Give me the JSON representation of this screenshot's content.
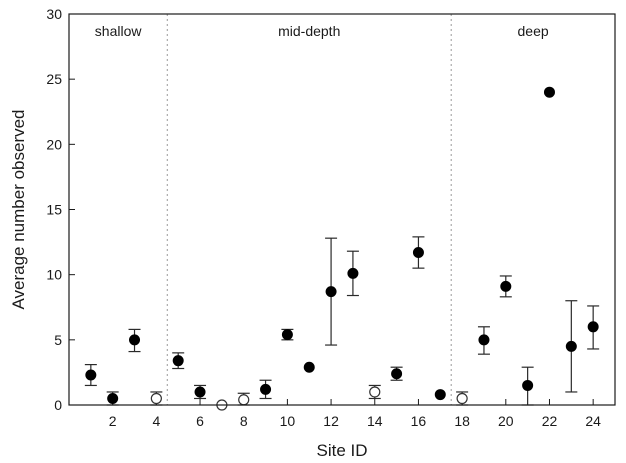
{
  "chart_data": {
    "type": "scatter",
    "xlabel": "Site ID",
    "ylabel": "Average number observed",
    "xlim": [
      0,
      25
    ],
    "ylim": [
      0,
      30
    ],
    "x_ticks": [
      2,
      4,
      6,
      8,
      10,
      12,
      14,
      16,
      18,
      20,
      22,
      24
    ],
    "y_ticks": [
      0,
      5,
      10,
      15,
      20,
      25,
      30
    ],
    "grid": false,
    "regions": [
      {
        "label": "shallow",
        "x_start": 0,
        "x_end": 4.5
      },
      {
        "label": "mid-depth",
        "x_start": 4.5,
        "x_end": 17.5
      },
      {
        "label": "deep",
        "x_start": 17.5,
        "x_end": 25
      }
    ],
    "separators": [
      4.5,
      17.5
    ],
    "points": [
      {
        "x": 1,
        "y": 2.3,
        "err_low": 1.5,
        "err_high": 3.1,
        "filled": true
      },
      {
        "x": 2,
        "y": 0.5,
        "err_low": 0.0,
        "err_high": 1.0,
        "filled": true
      },
      {
        "x": 3,
        "y": 5.0,
        "err_low": 4.1,
        "err_high": 5.8,
        "filled": true
      },
      {
        "x": 4,
        "y": 0.5,
        "err_low": 0.0,
        "err_high": 1.0,
        "filled": false
      },
      {
        "x": 5,
        "y": 3.4,
        "err_low": 2.8,
        "err_high": 4.0,
        "filled": true
      },
      {
        "x": 6,
        "y": 1.0,
        "err_low": 0.5,
        "err_high": 1.5,
        "filled": true
      },
      {
        "x": 7,
        "y": 0.0,
        "err_low": null,
        "err_high": null,
        "filled": false
      },
      {
        "x": 8,
        "y": 0.4,
        "err_low": 0.0,
        "err_high": 0.9,
        "filled": false
      },
      {
        "x": 9,
        "y": 1.2,
        "err_low": 0.5,
        "err_high": 1.9,
        "filled": true
      },
      {
        "x": 10,
        "y": 5.4,
        "err_low": 5.0,
        "err_high": 5.8,
        "filled": true
      },
      {
        "x": 11,
        "y": 2.9,
        "err_low": null,
        "err_high": null,
        "filled": true
      },
      {
        "x": 12,
        "y": 8.7,
        "err_low": 4.6,
        "err_high": 12.8,
        "filled": true
      },
      {
        "x": 13,
        "y": 10.1,
        "err_low": 8.4,
        "err_high": 11.8,
        "filled": true
      },
      {
        "x": 14,
        "y": 1.0,
        "err_low": 0.5,
        "err_high": 1.5,
        "filled": false
      },
      {
        "x": 15,
        "y": 2.4,
        "err_low": 1.9,
        "err_high": 2.9,
        "filled": true
      },
      {
        "x": 16,
        "y": 11.7,
        "err_low": 10.5,
        "err_high": 12.9,
        "filled": true
      },
      {
        "x": 17,
        "y": 0.8,
        "err_low": null,
        "err_high": null,
        "filled": true
      },
      {
        "x": 18,
        "y": 0.5,
        "err_low": 0.0,
        "err_high": 1.0,
        "filled": false
      },
      {
        "x": 19,
        "y": 5.0,
        "err_low": 3.9,
        "err_high": 6.0,
        "filled": true
      },
      {
        "x": 20,
        "y": 9.1,
        "err_low": 8.3,
        "err_high": 9.9,
        "filled": true
      },
      {
        "x": 21,
        "y": 1.5,
        "err_low": 0.0,
        "err_high": 2.9,
        "filled": true
      },
      {
        "x": 22,
        "y": 24.0,
        "err_low": null,
        "err_high": null,
        "filled": true
      },
      {
        "x": 23,
        "y": 4.5,
        "err_low": 1.0,
        "err_high": 8.0,
        "filled": true
      },
      {
        "x": 24,
        "y": 6.0,
        "err_low": 4.3,
        "err_high": 7.6,
        "filled": true
      }
    ]
  }
}
